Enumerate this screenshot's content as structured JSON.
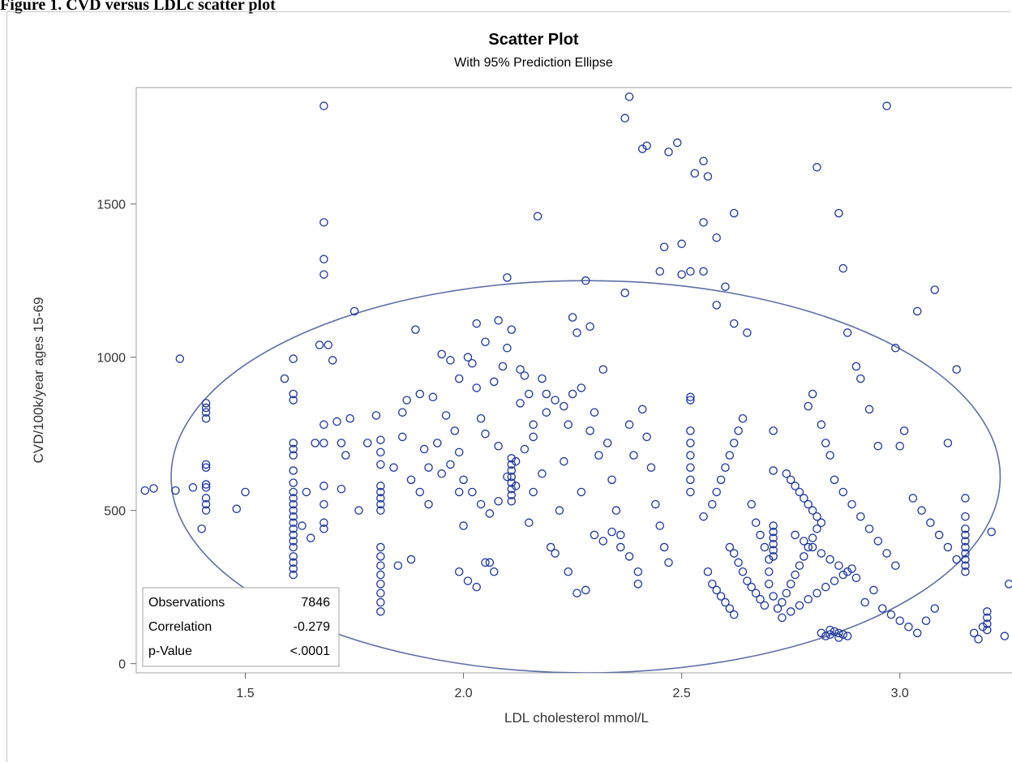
{
  "figure_caption": "Figure 1. CVD versus LDLc scatter plot",
  "chart_data": {
    "type": "scatter",
    "title": "Scatter Plot",
    "subtitle": "With 95% Prediction Ellipse",
    "xlabel": "LDL cholesterol mmol/L",
    "ylabel": "CVD/100k/year ages 15-69",
    "xlim": [
      1.25,
      3.27
    ],
    "ylim": [
      -30,
      1880
    ],
    "xticks": [
      1.5,
      2.0,
      2.5,
      3.0
    ],
    "xtick_labels": [
      "1.5",
      "2.0",
      "2.5",
      "3.0"
    ],
    "yticks": [
      0,
      500,
      1000,
      1500
    ],
    "ytick_labels": [
      "0",
      "500",
      "1000",
      "1500"
    ],
    "grid": false,
    "marker_color": "#1a35a0",
    "ellipse_color": "#5f6fa8",
    "stats": {
      "rows": [
        {
          "label": "Observations",
          "value": "7846"
        },
        {
          "label": "Correlation",
          "value": "-0.279"
        },
        {
          "label": "p-Value",
          "value": "<.0001"
        }
      ]
    },
    "prediction_ellipse": {
      "center": [
        2.28,
        610
      ],
      "semi_axis_x": 0.95,
      "semi_axis_y": 640,
      "level": "95%"
    },
    "points": [
      [
        1.27,
        565
      ],
      [
        1.29,
        572
      ],
      [
        1.34,
        565
      ],
      [
        1.35,
        995
      ],
      [
        1.38,
        575
      ],
      [
        1.4,
        440
      ],
      [
        1.41,
        500
      ],
      [
        1.41,
        520
      ],
      [
        1.41,
        540
      ],
      [
        1.41,
        575
      ],
      [
        1.41,
        585
      ],
      [
        1.41,
        640
      ],
      [
        1.41,
        650
      ],
      [
        1.41,
        800
      ],
      [
        1.41,
        820
      ],
      [
        1.41,
        835
      ],
      [
        1.41,
        850
      ],
      [
        1.48,
        505
      ],
      [
        1.5,
        560
      ],
      [
        1.59,
        930
      ],
      [
        1.61,
        290
      ],
      [
        1.61,
        310
      ],
      [
        1.61,
        330
      ],
      [
        1.61,
        350
      ],
      [
        1.61,
        380
      ],
      [
        1.61,
        400
      ],
      [
        1.61,
        420
      ],
      [
        1.61,
        440
      ],
      [
        1.61,
        460
      ],
      [
        1.61,
        480
      ],
      [
        1.61,
        500
      ],
      [
        1.61,
        520
      ],
      [
        1.61,
        540
      ],
      [
        1.61,
        560
      ],
      [
        1.61,
        590
      ],
      [
        1.61,
        630
      ],
      [
        1.61,
        680
      ],
      [
        1.61,
        700
      ],
      [
        1.61,
        720
      ],
      [
        1.61,
        860
      ],
      [
        1.61,
        880
      ],
      [
        1.61,
        995
      ],
      [
        1.63,
        450
      ],
      [
        1.64,
        560
      ],
      [
        1.65,
        410
      ],
      [
        1.66,
        720
      ],
      [
        1.67,
        1040
      ],
      [
        1.68,
        440
      ],
      [
        1.68,
        460
      ],
      [
        1.68,
        520
      ],
      [
        1.68,
        580
      ],
      [
        1.68,
        720
      ],
      [
        1.68,
        780
      ],
      [
        1.68,
        1270
      ],
      [
        1.68,
        1320
      ],
      [
        1.68,
        1440
      ],
      [
        1.68,
        1820
      ],
      [
        1.69,
        1040
      ],
      [
        1.7,
        990
      ],
      [
        1.71,
        790
      ],
      [
        1.72,
        570
      ],
      [
        1.72,
        720
      ],
      [
        1.73,
        680
      ],
      [
        1.74,
        800
      ],
      [
        1.75,
        1150
      ],
      [
        1.76,
        500
      ],
      [
        1.78,
        720
      ],
      [
        1.8,
        810
      ],
      [
        1.81,
        170
      ],
      [
        1.81,
        200
      ],
      [
        1.81,
        230
      ],
      [
        1.81,
        260
      ],
      [
        1.81,
        290
      ],
      [
        1.81,
        320
      ],
      [
        1.81,
        350
      ],
      [
        1.81,
        380
      ],
      [
        1.81,
        500
      ],
      [
        1.81,
        520
      ],
      [
        1.81,
        540
      ],
      [
        1.81,
        560
      ],
      [
        1.81,
        580
      ],
      [
        1.81,
        650
      ],
      [
        1.81,
        690
      ],
      [
        1.81,
        730
      ],
      [
        1.84,
        640
      ],
      [
        1.85,
        320
      ],
      [
        1.86,
        820
      ],
      [
        1.87,
        860
      ],
      [
        1.88,
        340
      ],
      [
        1.89,
        1090
      ],
      [
        1.9,
        880
      ],
      [
        1.91,
        700
      ],
      [
        1.92,
        520
      ],
      [
        1.93,
        870
      ],
      [
        1.95,
        620
      ],
      [
        1.97,
        650
      ],
      [
        1.99,
        560
      ],
      [
        2.0,
        450
      ],
      [
        2.01,
        1000
      ],
      [
        2.02,
        980
      ],
      [
        2.03,
        900
      ],
      [
        2.04,
        800
      ],
      [
        2.05,
        750
      ],
      [
        2.06,
        330
      ],
      [
        2.07,
        920
      ],
      [
        2.08,
        710
      ],
      [
        2.09,
        970
      ],
      [
        2.1,
        1260
      ],
      [
        2.11,
        1090
      ],
      [
        2.12,
        580
      ],
      [
        2.13,
        850
      ],
      [
        2.14,
        940
      ],
      [
        2.15,
        460
      ],
      [
        2.16,
        560
      ],
      [
        2.17,
        1460
      ],
      [
        2.18,
        930
      ],
      [
        2.19,
        880
      ],
      [
        2.2,
        380
      ],
      [
        2.21,
        360
      ],
      [
        2.22,
        500
      ],
      [
        2.23,
        660
      ],
      [
        2.24,
        780
      ],
      [
        2.25,
        1130
      ],
      [
        2.26,
        1080
      ],
      [
        2.27,
        560
      ],
      [
        2.28,
        1250
      ],
      [
        2.29,
        1100
      ],
      [
        2.3,
        820
      ],
      [
        2.31,
        680
      ],
      [
        2.32,
        960
      ],
      [
        2.33,
        720
      ],
      [
        2.34,
        600
      ],
      [
        2.35,
        500
      ],
      [
        2.36,
        420
      ],
      [
        2.37,
        1210
      ],
      [
        2.38,
        780
      ],
      [
        2.39,
        680
      ],
      [
        2.4,
        300
      ],
      [
        2.4,
        260
      ],
      [
        2.41,
        830
      ],
      [
        2.42,
        740
      ],
      [
        2.43,
        640
      ],
      [
        2.44,
        520
      ],
      [
        2.45,
        450
      ],
      [
        2.46,
        380
      ],
      [
        2.47,
        330
      ],
      [
        2.38,
        1850
      ],
      [
        2.37,
        1780
      ],
      [
        2.41,
        1680
      ],
      [
        2.42,
        1690
      ],
      [
        2.47,
        1670
      ],
      [
        2.49,
        1700
      ],
      [
        2.53,
        1600
      ],
      [
        2.55,
        1640
      ],
      [
        2.56,
        1590
      ],
      [
        2.46,
        1360
      ],
      [
        2.5,
        1370
      ],
      [
        2.55,
        1440
      ],
      [
        2.58,
        1390
      ],
      [
        2.62,
        1470
      ],
      [
        2.45,
        1280
      ],
      [
        2.5,
        1270
      ],
      [
        2.52,
        1280
      ],
      [
        2.55,
        1280
      ],
      [
        2.6,
        1230
      ],
      [
        2.58,
        1170
      ],
      [
        2.62,
        1110
      ],
      [
        2.65,
        1080
      ],
      [
        2.61,
        380
      ],
      [
        2.62,
        360
      ],
      [
        2.63,
        330
      ],
      [
        2.64,
        300
      ],
      [
        2.65,
        270
      ],
      [
        2.66,
        250
      ],
      [
        2.67,
        230
      ],
      [
        2.68,
        210
      ],
      [
        2.69,
        190
      ],
      [
        2.55,
        480
      ],
      [
        2.57,
        520
      ],
      [
        2.58,
        560
      ],
      [
        2.59,
        600
      ],
      [
        2.6,
        640
      ],
      [
        2.61,
        680
      ],
      [
        2.62,
        720
      ],
      [
        2.63,
        760
      ],
      [
        2.64,
        800
      ],
      [
        2.56,
        300
      ],
      [
        2.57,
        260
      ],
      [
        2.58,
        240
      ],
      [
        2.59,
        220
      ],
      [
        2.6,
        200
      ],
      [
        2.61,
        180
      ],
      [
        2.62,
        160
      ],
      [
        2.52,
        560
      ],
      [
        2.52,
        600
      ],
      [
        2.52,
        640
      ],
      [
        2.52,
        680
      ],
      [
        2.52,
        720
      ],
      [
        2.52,
        760
      ],
      [
        2.52,
        860
      ],
      [
        2.52,
        870
      ],
      [
        2.66,
        520
      ],
      [
        2.67,
        460
      ],
      [
        2.68,
        420
      ],
      [
        2.69,
        380
      ],
      [
        2.7,
        340
      ],
      [
        2.7,
        300
      ],
      [
        2.7,
        260
      ],
      [
        2.71,
        220
      ],
      [
        2.72,
        180
      ],
      [
        2.71,
        350
      ],
      [
        2.71,
        370
      ],
      [
        2.71,
        390
      ],
      [
        2.71,
        410
      ],
      [
        2.71,
        430
      ],
      [
        2.71,
        450
      ],
      [
        2.71,
        630
      ],
      [
        2.71,
        760
      ],
      [
        2.73,
        200
      ],
      [
        2.74,
        230
      ],
      [
        2.75,
        260
      ],
      [
        2.76,
        290
      ],
      [
        2.77,
        320
      ],
      [
        2.78,
        350
      ],
      [
        2.79,
        380
      ],
      [
        2.8,
        410
      ],
      [
        2.81,
        440
      ],
      [
        2.74,
        620
      ],
      [
        2.75,
        600
      ],
      [
        2.76,
        580
      ],
      [
        2.77,
        560
      ],
      [
        2.78,
        540
      ],
      [
        2.79,
        520
      ],
      [
        2.8,
        500
      ],
      [
        2.81,
        480
      ],
      [
        2.82,
        460
      ],
      [
        2.73,
        150
      ],
      [
        2.75,
        170
      ],
      [
        2.77,
        190
      ],
      [
        2.79,
        210
      ],
      [
        2.81,
        230
      ],
      [
        2.83,
        250
      ],
      [
        2.85,
        270
      ],
      [
        2.87,
        290
      ],
      [
        2.89,
        310
      ],
      [
        2.82,
        100
      ],
      [
        2.83,
        90
      ],
      [
        2.84,
        95
      ],
      [
        2.85,
        105
      ],
      [
        2.86,
        100
      ],
      [
        2.87,
        95
      ],
      [
        2.88,
        90
      ],
      [
        2.84,
        110
      ],
      [
        2.86,
        85
      ],
      [
        2.76,
        420
      ],
      [
        2.78,
        400
      ],
      [
        2.8,
        380
      ],
      [
        2.82,
        360
      ],
      [
        2.84,
        340
      ],
      [
        2.86,
        320
      ],
      [
        2.88,
        300
      ],
      [
        2.9,
        280
      ],
      [
        2.79,
        840
      ],
      [
        2.8,
        880
      ],
      [
        2.81,
        1620
      ],
      [
        2.82,
        780
      ],
      [
        2.83,
        720
      ],
      [
        2.84,
        680
      ],
      [
        2.86,
        1470
      ],
      [
        2.87,
        1290
      ],
      [
        2.88,
        1080
      ],
      [
        2.85,
        600
      ],
      [
        2.87,
        560
      ],
      [
        2.89,
        520
      ],
      [
        2.91,
        480
      ],
      [
        2.93,
        440
      ],
      [
        2.95,
        400
      ],
      [
        2.97,
        360
      ],
      [
        2.99,
        320
      ],
      [
        2.9,
        970
      ],
      [
        2.91,
        930
      ],
      [
        2.93,
        830
      ],
      [
        2.95,
        710
      ],
      [
        2.97,
        1820
      ],
      [
        2.99,
        1030
      ],
      [
        3.0,
        710
      ],
      [
        2.92,
        200
      ],
      [
        2.94,
        240
      ],
      [
        2.96,
        180
      ],
      [
        2.98,
        160
      ],
      [
        3.0,
        140
      ],
      [
        3.02,
        120
      ],
      [
        3.04,
        100
      ],
      [
        3.06,
        140
      ],
      [
        3.08,
        180
      ],
      [
        3.01,
        760
      ],
      [
        3.03,
        540
      ],
      [
        3.05,
        500
      ],
      [
        3.07,
        460
      ],
      [
        3.09,
        420
      ],
      [
        3.11,
        380
      ],
      [
        3.13,
        340
      ],
      [
        3.15,
        300
      ],
      [
        3.04,
        1150
      ],
      [
        3.08,
        1220
      ],
      [
        3.11,
        720
      ],
      [
        3.13,
        960
      ],
      [
        3.15,
        320
      ],
      [
        3.15,
        340
      ],
      [
        3.15,
        360
      ],
      [
        3.15,
        380
      ],
      [
        3.15,
        400
      ],
      [
        3.15,
        420
      ],
      [
        3.15,
        440
      ],
      [
        3.15,
        480
      ],
      [
        3.15,
        540
      ],
      [
        3.17,
        100
      ],
      [
        3.18,
        80
      ],
      [
        3.19,
        120
      ],
      [
        3.2,
        110
      ],
      [
        3.2,
        130
      ],
      [
        3.2,
        150
      ],
      [
        3.2,
        170
      ],
      [
        3.21,
        430
      ],
      [
        3.24,
        90
      ],
      [
        3.25,
        260
      ],
      [
        1.86,
        740
      ],
      [
        1.88,
        600
      ],
      [
        1.9,
        560
      ],
      [
        1.92,
        640
      ],
      [
        1.94,
        720
      ],
      [
        1.96,
        810
      ],
      [
        1.98,
        760
      ],
      [
        1.99,
        690
      ],
      [
        2.0,
        600
      ],
      [
        2.02,
        560
      ],
      [
        2.04,
        520
      ],
      [
        2.06,
        490
      ],
      [
        2.08,
        530
      ],
      [
        2.1,
        610
      ],
      [
        2.12,
        660
      ],
      [
        2.14,
        700
      ],
      [
        2.16,
        740
      ],
      [
        2.18,
        620
      ],
      [
        1.95,
        1010
      ],
      [
        1.97,
        990
      ],
      [
        1.99,
        930
      ],
      [
        2.03,
        1110
      ],
      [
        2.05,
        1050
      ],
      [
        2.08,
        1120
      ],
      [
        2.1,
        1030
      ],
      [
        2.13,
        960
      ],
      [
        2.15,
        880
      ],
      [
        2.11,
        670
      ],
      [
        2.11,
        650
      ],
      [
        2.11,
        630
      ],
      [
        2.11,
        610
      ],
      [
        2.11,
        590
      ],
      [
        2.11,
        570
      ],
      [
        2.11,
        550
      ],
      [
        2.11,
        530
      ],
      [
        2.24,
        300
      ],
      [
        2.26,
        230
      ],
      [
        2.28,
        240
      ],
      [
        2.3,
        420
      ],
      [
        2.32,
        400
      ],
      [
        2.34,
        430
      ],
      [
        2.36,
        380
      ],
      [
        2.38,
        350
      ],
      [
        2.16,
        780
      ],
      [
        2.19,
        820
      ],
      [
        2.21,
        860
      ],
      [
        2.23,
        840
      ],
      [
        2.25,
        880
      ],
      [
        2.27,
        900
      ],
      [
        2.29,
        760
      ],
      [
        1.99,
        300
      ],
      [
        2.01,
        270
      ],
      [
        2.03,
        250
      ],
      [
        2.05,
        330
      ],
      [
        2.07,
        300
      ]
    ]
  }
}
